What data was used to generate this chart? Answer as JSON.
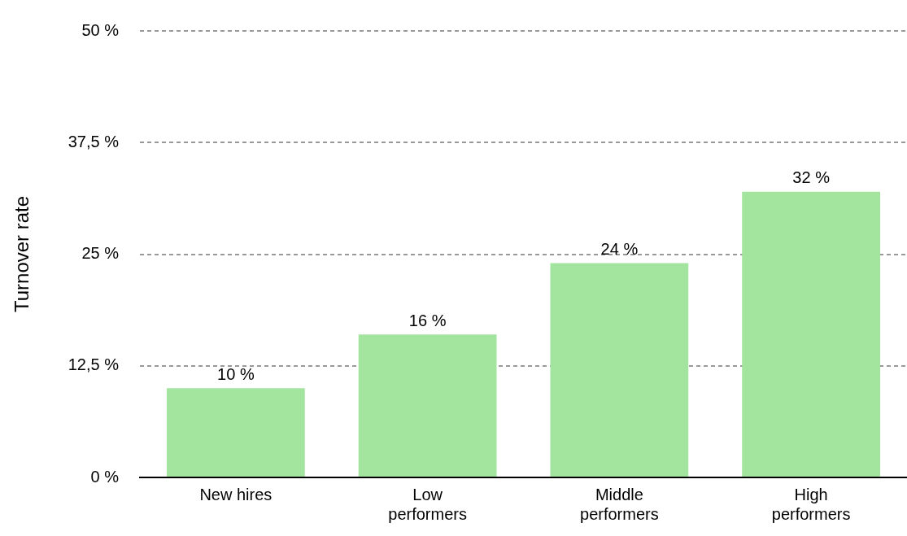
{
  "chart_data": {
    "type": "bar",
    "ylabel": "Turnover rate",
    "categories": [
      "New hires",
      "Low performers",
      "Middle performers",
      "High performers"
    ],
    "values": [
      10,
      16,
      24,
      32
    ],
    "color": "#a3e59e",
    "value_labels": [
      "10 %",
      "16 %",
      "24 %",
      "32 %"
    ],
    "ylim": [
      0,
      50
    ],
    "yticks": [
      {
        "value": 0,
        "label": "0 %"
      },
      {
        "value": 12.5,
        "label": "12,5 %"
      },
      {
        "value": 25,
        "label": "25 %"
      },
      {
        "value": 37.5,
        "label": "37,5 %"
      },
      {
        "value": 50,
        "label": "50 %"
      }
    ],
    "grid": "y",
    "legend": false
  }
}
